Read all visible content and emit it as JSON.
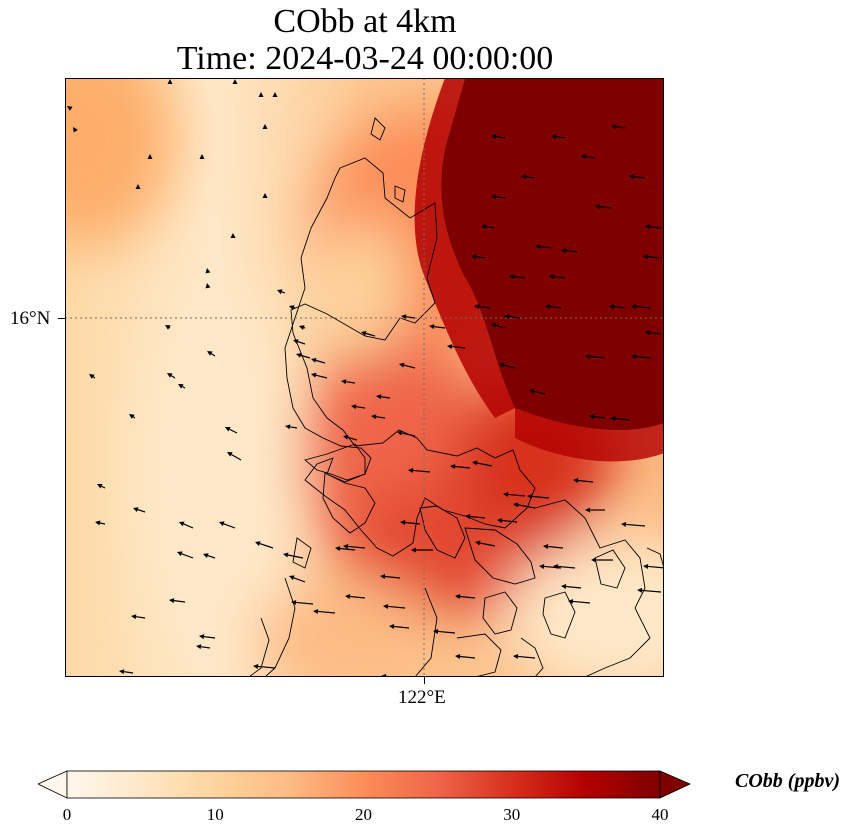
{
  "map": {
    "title_line1": "CObb at 4km",
    "title_line2": "Time: 2024-03-24 00:00:00",
    "lat_label": "16°N",
    "lon_label": "122°E",
    "gridline_color": "#7f6a5a"
  },
  "colorbar": {
    "label": "CObb (ppbv)",
    "ticks": [
      "0",
      "10",
      "20",
      "30",
      "40"
    ],
    "range": [
      0,
      40
    ],
    "colormap": "OrRd",
    "stops": [
      "#fff7ec",
      "#fee8c8",
      "#fdd49e",
      "#fdbb84",
      "#fc8d59",
      "#ef6548",
      "#d7301f",
      "#b30000",
      "#7f0000"
    ]
  }
}
